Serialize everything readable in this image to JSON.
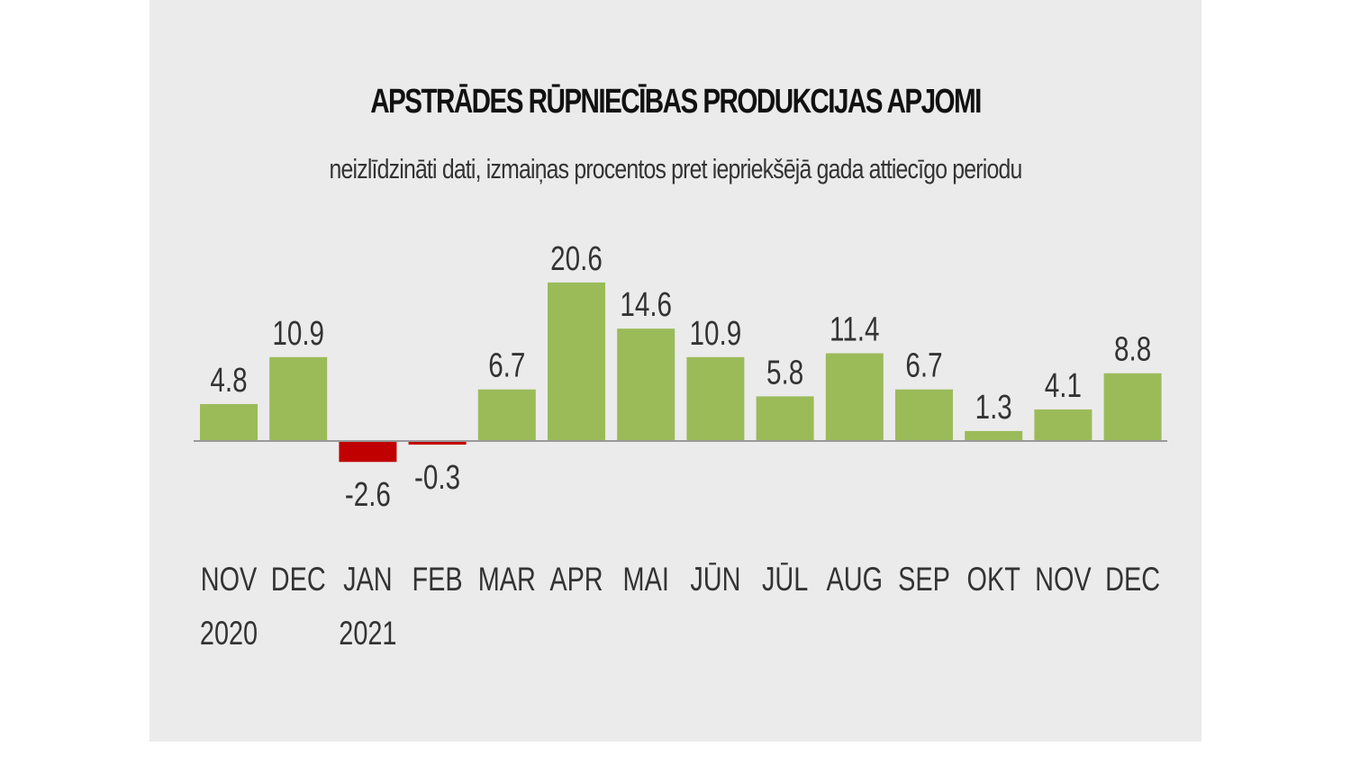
{
  "colors": {
    "positive": "#9bbb59",
    "negative": "#c00000",
    "axis": "#999999",
    "background": "#ebebeb"
  },
  "chart_data": {
    "type": "bar",
    "title": "APSTRĀDES RŪPNIECĪBAS PRODUKCIJAS APJOMI",
    "subtitle": "neizlīdzināti dati, izmaiņas procentos pret iepriekšējā gada attiecīgo periodu",
    "categories": [
      "NOV",
      "DEC",
      "JAN",
      "FEB",
      "MAR",
      "APR",
      "MAI",
      "JŪN",
      "JŪL",
      "AUG",
      "SEP",
      "OKT",
      "NOV",
      "DEC"
    ],
    "year_labels": [
      "2020",
      "",
      "2021",
      "",
      "",
      "",
      "",
      "",
      "",
      "",
      "",
      "",
      "",
      ""
    ],
    "values": [
      4.8,
      10.9,
      -2.6,
      -0.3,
      6.7,
      20.6,
      14.6,
      10.9,
      5.8,
      11.4,
      6.7,
      1.3,
      4.1,
      8.8
    ],
    "value_labels": [
      "4.8",
      "10.9",
      "-2.6",
      "-0.3",
      "6.7",
      "20.6",
      "14.6",
      "10.9",
      "5.8",
      "11.4",
      "6.7",
      "1.3",
      "4.1",
      "8.8"
    ],
    "xlabel": "",
    "ylabel": "",
    "ylim": [
      -2.6,
      20.6
    ],
    "grid": false,
    "legend": "none"
  }
}
